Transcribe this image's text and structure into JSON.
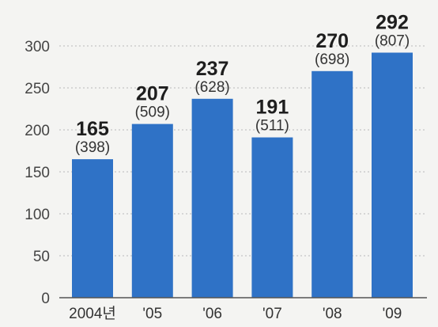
{
  "chart_data": {
    "type": "bar",
    "categories": [
      "2004년",
      "'05",
      "'06",
      "'07",
      "'08",
      "'09"
    ],
    "values": [
      165,
      207,
      237,
      191,
      270,
      292
    ],
    "secondary_labels": [
      "(398)",
      "(509)",
      "(628)",
      "(511)",
      "(698)",
      "(807)"
    ],
    "ylim": [
      0,
      300
    ],
    "yticks": [
      0,
      50,
      100,
      150,
      200,
      250,
      300
    ],
    "grid": true,
    "colors": {
      "bar": "#2f72c6",
      "grid": "#b9b9b9",
      "axis": "#555555",
      "background": "#f4f4f2"
    }
  }
}
